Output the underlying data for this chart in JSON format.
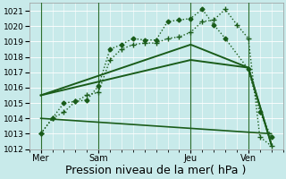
{
  "xlabel": "Pression niveau de la mer( hPa )",
  "bg_color": "#c8eaea",
  "grid_color": "#b8dede",
  "line_color": "#1a5c1a",
  "ylim": [
    1012,
    1021.5
  ],
  "yticks": [
    1012,
    1013,
    1014,
    1015,
    1016,
    1017,
    1018,
    1019,
    1020,
    1021
  ],
  "xlim": [
    0,
    11
  ],
  "xtick_pos": [
    0.5,
    3.0,
    7.0,
    9.5
  ],
  "xtick_labels": [
    "Mer",
    "Sam",
    "Jeu",
    "Ven"
  ],
  "vlines": [
    0.5,
    3.0,
    7.0,
    9.5
  ],
  "line1": {
    "x": [
      0.5,
      1.0,
      1.5,
      2.0,
      2.5,
      3.0,
      3.5,
      4.0,
      4.5,
      5.0,
      5.5,
      6.0,
      6.5,
      7.0,
      7.5,
      8.0,
      8.5,
      9.5,
      10.0,
      10.5
    ],
    "y": [
      1013.0,
      1014.0,
      1015.0,
      1015.1,
      1015.2,
      1016.1,
      1018.5,
      1018.8,
      1019.2,
      1019.1,
      1019.1,
      1020.3,
      1020.4,
      1020.5,
      1021.1,
      1020.1,
      1019.2,
      1017.2,
      1014.4,
      1012.8
    ],
    "linestyle": "dotted",
    "marker": "D",
    "markersize": 2.5,
    "linewidth": 1.0
  },
  "line2": {
    "x": [
      0.5,
      7.0,
      9.5,
      10.5
    ],
    "y": [
      1015.5,
      1018.8,
      1017.3,
      1012.3
    ],
    "linestyle": "solid",
    "marker": null,
    "markersize": 0,
    "linewidth": 1.4
  },
  "line3": {
    "x": [
      0.5,
      7.0,
      9.5,
      10.5
    ],
    "y": [
      1015.5,
      1017.8,
      1017.3,
      1012.3
    ],
    "linestyle": "solid",
    "marker": null,
    "markersize": 0,
    "linewidth": 1.4
  },
  "line4": {
    "x": [
      0.5,
      1.0,
      1.5,
      2.0,
      2.5,
      3.0,
      3.5,
      4.0,
      4.5,
      5.0,
      5.5,
      6.0,
      6.5,
      7.0,
      7.5,
      8.0,
      8.5,
      9.0,
      9.5,
      10.0,
      10.5
    ],
    "y": [
      1013.0,
      1014.0,
      1014.4,
      1015.1,
      1015.5,
      1015.7,
      1017.8,
      1018.5,
      1018.8,
      1018.9,
      1018.9,
      1019.2,
      1019.3,
      1019.6,
      1020.3,
      1020.4,
      1021.1,
      1020.1,
      1019.2,
      1012.8,
      1012.2
    ],
    "linestyle": "dotted",
    "marker": "+",
    "markersize": 4,
    "linewidth": 1.0
  },
  "line5": {
    "x": [
      0.5,
      10.5
    ],
    "y": [
      1014.0,
      1013.0
    ],
    "linestyle": "solid",
    "marker": null,
    "markersize": 0,
    "linewidth": 1.2
  }
}
